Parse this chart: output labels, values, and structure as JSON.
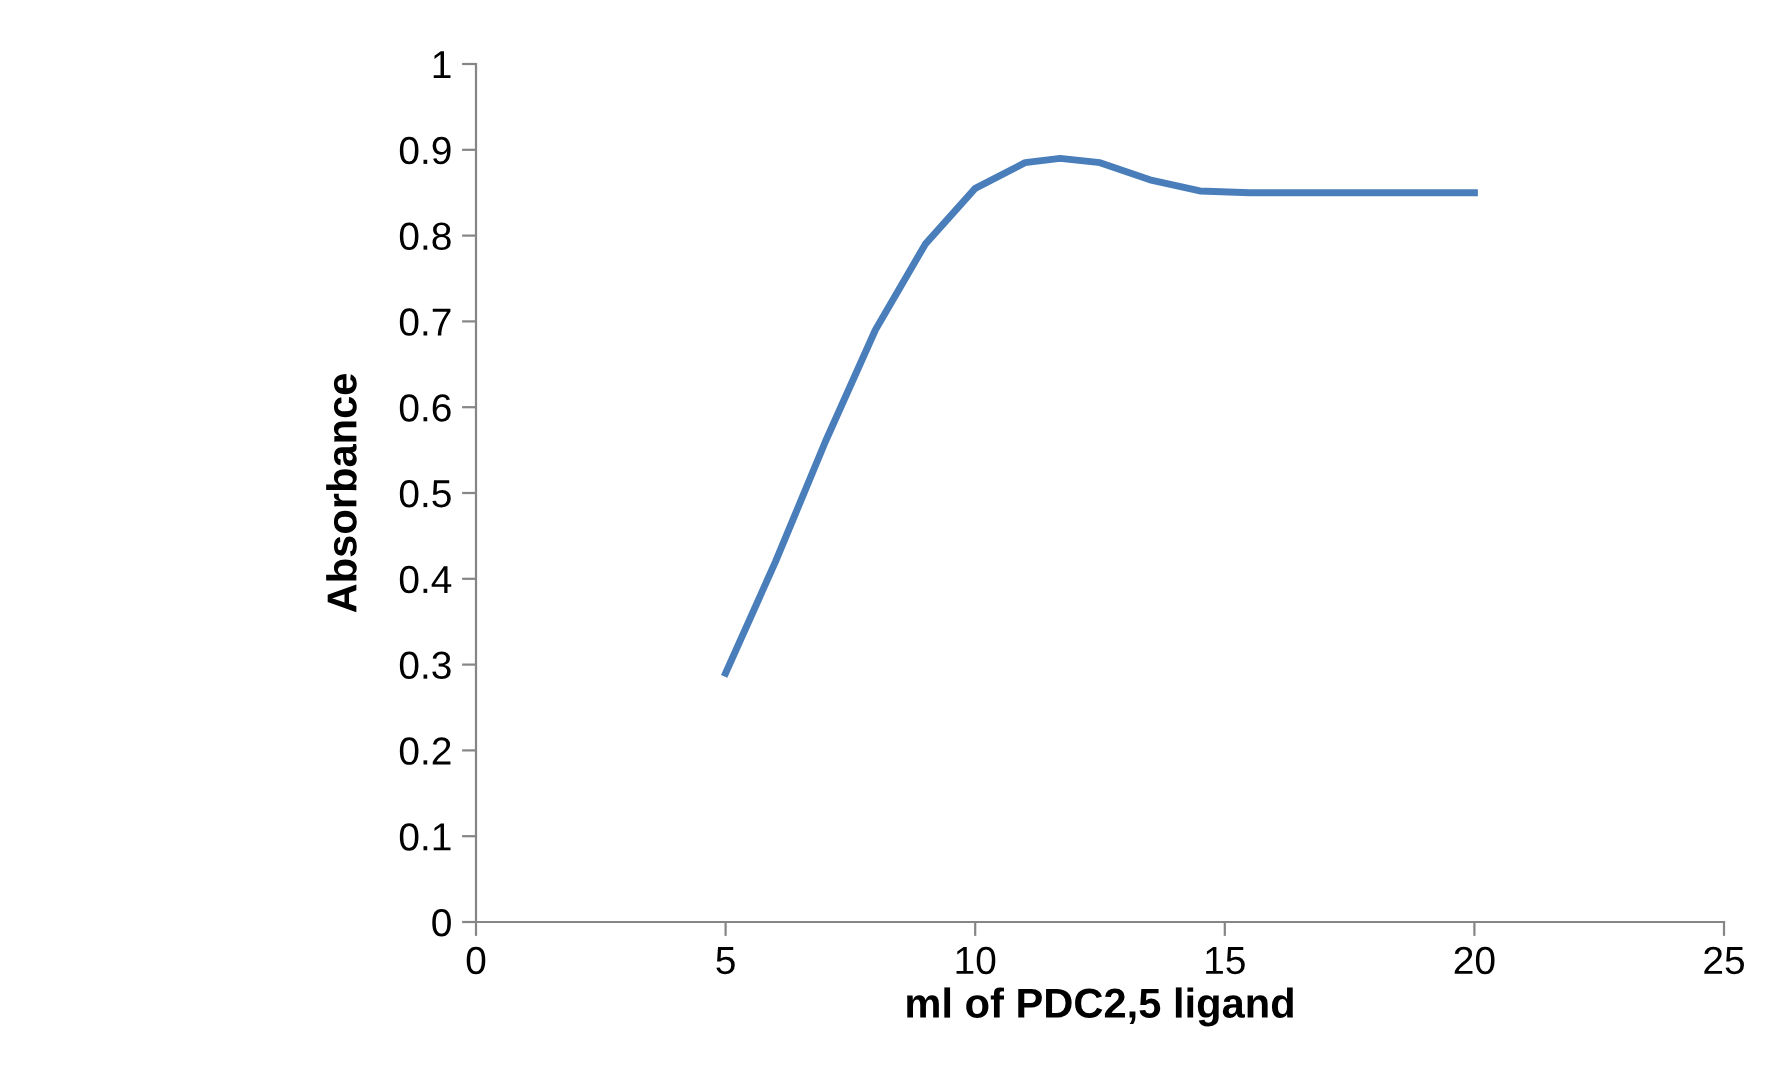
{
  "chart_data": {
    "type": "line",
    "xlabel": "ml of PDC2,5 ligand",
    "ylabel": "Absorbance",
    "x": [
      5,
      6,
      7,
      8,
      9,
      10,
      11,
      11.7,
      12.5,
      13.5,
      14.5,
      15.5,
      20
    ],
    "series": [
      {
        "color": "#4a7ebb",
        "values": [
          0.29,
          0.42,
          0.56,
          0.69,
          0.79,
          0.855,
          0.885,
          0.89,
          0.885,
          0.865,
          0.852,
          0.85,
          0.85
        ]
      }
    ],
    "xlim": [
      0,
      25
    ],
    "xticks": [
      0,
      5,
      10,
      15,
      20,
      25
    ],
    "ylim": [
      0,
      1
    ],
    "yticks": [
      0,
      0.1,
      0.2,
      0.3,
      0.4,
      0.5,
      0.6,
      0.7,
      0.8,
      0.9,
      1
    ],
    "grid": false,
    "legend": false,
    "marker": "none",
    "line_style": "solid"
  }
}
